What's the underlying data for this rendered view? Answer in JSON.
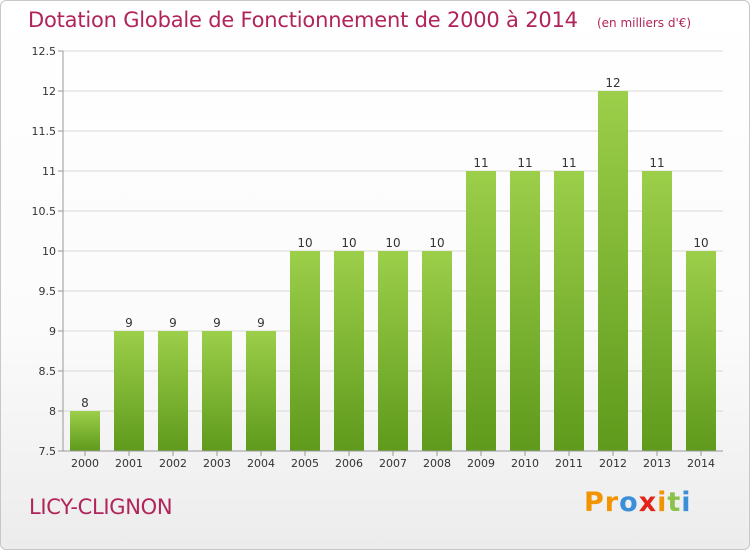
{
  "chart_data": {
    "type": "bar",
    "title": "Dotation Globale de Fonctionnement de 2000 à 2014",
    "subtitle": "(en milliers d'€)",
    "categories": [
      "2000",
      "2001",
      "2002",
      "2003",
      "2004",
      "2005",
      "2006",
      "2007",
      "2008",
      "2009",
      "2010",
      "2011",
      "2012",
      "2013",
      "2014"
    ],
    "values": [
      8,
      9,
      9,
      9,
      9,
      10,
      10,
      10,
      10,
      11,
      11,
      11,
      12,
      11,
      10
    ],
    "data_labels": [
      "8",
      "9",
      "9",
      "9",
      "9",
      "10",
      "10",
      "10",
      "10",
      "11",
      "11",
      "11",
      "12",
      "11",
      "10"
    ],
    "ylim": [
      7.5,
      12.5
    ],
    "yticks": [
      7.5,
      8,
      8.5,
      9,
      9.5,
      10,
      10.5,
      11,
      11.5,
      12,
      12.5
    ],
    "ytick_labels": [
      "7.5",
      "8",
      "8.5",
      "9",
      "9.5",
      "10",
      "10.5",
      "11",
      "11.5",
      "12",
      "12.5"
    ],
    "grid": true,
    "colors": {
      "bar_top": "#9ccf4a",
      "bar_bottom": "#5f9a1c",
      "title": "#b0245a"
    }
  },
  "footer": {
    "commune": "LICY-CLIGNON",
    "brand": [
      {
        "char": "P",
        "color": "#f29400"
      },
      {
        "char": "r",
        "color": "#f29400"
      },
      {
        "char": "o",
        "color": "#3b8ed8"
      },
      {
        "char": "x",
        "color": "#e2231a"
      },
      {
        "char": "i",
        "color": "#f29400"
      },
      {
        "char": "t",
        "color": "#8bc34a"
      },
      {
        "char": "i",
        "color": "#3b8ed8"
      }
    ]
  }
}
